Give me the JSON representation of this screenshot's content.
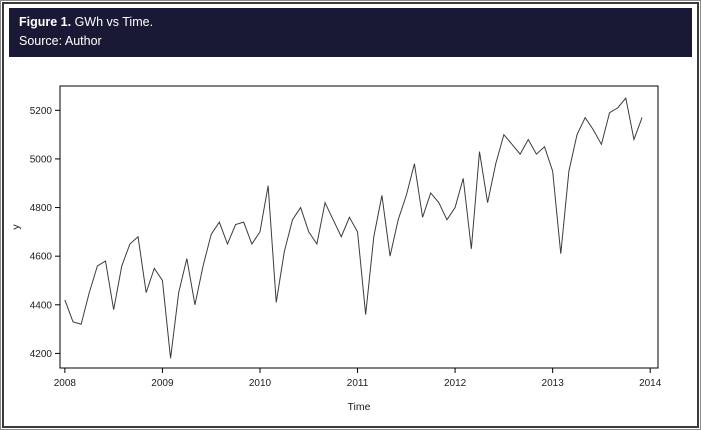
{
  "header": {
    "figure_label": "Figure 1.",
    "figure_title": " GWh vs Time.",
    "source": "Source: Author",
    "bar_color": "#191936"
  },
  "chart_data": {
    "type": "line",
    "title": "GWh vs Time",
    "xlabel": "Time",
    "ylabel": "y",
    "line_color": "#3c3c3c",
    "axis_color": "#000000",
    "x_start": 2008,
    "points_per_year": 12,
    "x_ticks": [
      2008,
      2009,
      2010,
      2011,
      2012,
      2013,
      2014
    ],
    "y_ticks": [
      4200,
      4400,
      4600,
      4800,
      5000,
      5200
    ],
    "xlim": [
      2007.95,
      2014.08
    ],
    "ylim": [
      4140,
      5300
    ],
    "grid": false,
    "legend": "none",
    "values": [
      4420,
      4330,
      4320,
      4450,
      4560,
      4580,
      4380,
      4560,
      4650,
      4680,
      4450,
      4550,
      4500,
      4180,
      4450,
      4590,
      4400,
      4560,
      4690,
      4740,
      4650,
      4730,
      4740,
      4650,
      4700,
      4890,
      4410,
      4620,
      4750,
      4800,
      4700,
      4650,
      4820,
      4750,
      4680,
      4760,
      4700,
      4360,
      4680,
      4850,
      4600,
      4750,
      4850,
      4980,
      4760,
      4860,
      4820,
      4750,
      4800,
      4920,
      4630,
      5030,
      4820,
      4980,
      5100,
      5060,
      5020,
      5080,
      5020,
      5050,
      4950,
      4610,
      4950,
      5100,
      5170,
      5120,
      5060,
      5190,
      5210,
      5250,
      5080,
      5170
    ]
  }
}
